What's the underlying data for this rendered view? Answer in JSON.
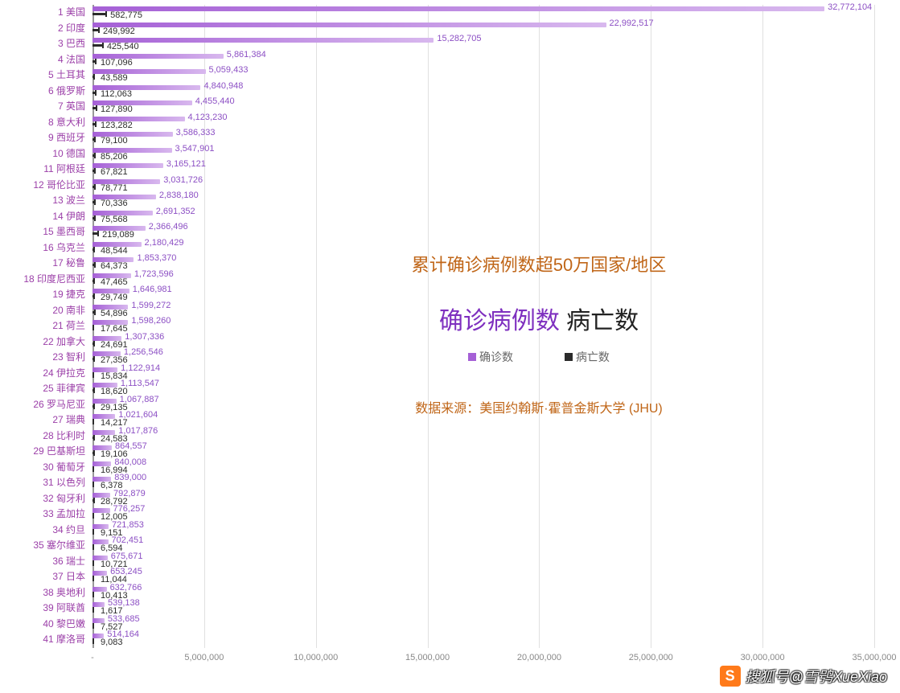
{
  "chart": {
    "type": "grouped-horizontal-bar",
    "background_color": "#ffffff",
    "grid_color": "#e0e0e0",
    "confirmed_bar_color": "#a560d6",
    "deaths_bar_color": "#2b2b2b",
    "ylabel_color": "#9b3fa8",
    "confirmed_label_color": "#8c4fc4",
    "deaths_label_color": "#2b2b2b",
    "xlim": [
      0,
      35000000
    ],
    "xtick_step": 5000000,
    "xticks": [
      "-",
      "5,000,000",
      "10,000,000",
      "15,000,000",
      "20,000,000",
      "25,000,000",
      "30,000,000",
      "35,000,000"
    ],
    "label_fontsize": 12,
    "value_fontsize": 11,
    "rows": [
      {
        "rank": 1,
        "name": "美国",
        "confirmed": 32772104,
        "deaths": 582775,
        "confirmed_label": "32,772,104",
        "deaths_label": "582,775"
      },
      {
        "rank": 2,
        "name": "印度",
        "confirmed": 22992517,
        "deaths": 249992,
        "confirmed_label": "22,992,517",
        "deaths_label": "249,992"
      },
      {
        "rank": 3,
        "name": "巴西",
        "confirmed": 15282705,
        "deaths": 425540,
        "confirmed_label": "15,282,705",
        "deaths_label": "425,540"
      },
      {
        "rank": 4,
        "name": "法国",
        "confirmed": 5861384,
        "deaths": 107096,
        "confirmed_label": "5,861,384",
        "deaths_label": "107,096"
      },
      {
        "rank": 5,
        "name": "土耳其",
        "confirmed": 5059433,
        "deaths": 43589,
        "confirmed_label": "5,059,433",
        "deaths_label": "43,589"
      },
      {
        "rank": 6,
        "name": "俄罗斯",
        "confirmed": 4840948,
        "deaths": 112063,
        "confirmed_label": "4,840,948",
        "deaths_label": "112,063"
      },
      {
        "rank": 7,
        "name": "英国",
        "confirmed": 4455440,
        "deaths": 127890,
        "confirmed_label": "4,455,440",
        "deaths_label": "127,890"
      },
      {
        "rank": 8,
        "name": "意大利",
        "confirmed": 4123230,
        "deaths": 123282,
        "confirmed_label": "4,123,230",
        "deaths_label": "123,282"
      },
      {
        "rank": 9,
        "name": "西班牙",
        "confirmed": 3586333,
        "deaths": 79100,
        "confirmed_label": "3,586,333",
        "deaths_label": "79,100"
      },
      {
        "rank": 10,
        "name": "德国",
        "confirmed": 3547901,
        "deaths": 85206,
        "confirmed_label": "3,547,901",
        "deaths_label": "85,206"
      },
      {
        "rank": 11,
        "name": "阿根廷",
        "confirmed": 3165121,
        "deaths": 67821,
        "confirmed_label": "3,165,121",
        "deaths_label": "67,821"
      },
      {
        "rank": 12,
        "name": "哥伦比亚",
        "confirmed": 3031726,
        "deaths": 78771,
        "confirmed_label": "3,031,726",
        "deaths_label": "78,771"
      },
      {
        "rank": 13,
        "name": "波兰",
        "confirmed": 2838180,
        "deaths": 70336,
        "confirmed_label": "2,838,180",
        "deaths_label": "70,336"
      },
      {
        "rank": 14,
        "name": "伊朗",
        "confirmed": 2691352,
        "deaths": 75568,
        "confirmed_label": "2,691,352",
        "deaths_label": "75,568"
      },
      {
        "rank": 15,
        "name": "墨西哥",
        "confirmed": 2366496,
        "deaths": 219089,
        "confirmed_label": "2,366,496",
        "deaths_label": "219,089"
      },
      {
        "rank": 16,
        "name": "乌克兰",
        "confirmed": 2180429,
        "deaths": 48544,
        "confirmed_label": "2,180,429",
        "deaths_label": "48,544"
      },
      {
        "rank": 17,
        "name": "秘鲁",
        "confirmed": 1853370,
        "deaths": 64373,
        "confirmed_label": "1,853,370",
        "deaths_label": "64,373"
      },
      {
        "rank": 18,
        "name": "印度尼西亚",
        "confirmed": 1723596,
        "deaths": 47465,
        "confirmed_label": "1,723,596",
        "deaths_label": "47,465"
      },
      {
        "rank": 19,
        "name": "捷克",
        "confirmed": 1646981,
        "deaths": 29749,
        "confirmed_label": "1,646,981",
        "deaths_label": "29,749"
      },
      {
        "rank": 20,
        "name": "南非",
        "confirmed": 1599272,
        "deaths": 54896,
        "confirmed_label": "1,599,272",
        "deaths_label": "54,896"
      },
      {
        "rank": 21,
        "name": "荷兰",
        "confirmed": 1598260,
        "deaths": 17645,
        "confirmed_label": "1,598,260",
        "deaths_label": "17,645"
      },
      {
        "rank": 22,
        "name": "加拿大",
        "confirmed": 1307336,
        "deaths": 24691,
        "confirmed_label": "1,307,336",
        "deaths_label": "24,691"
      },
      {
        "rank": 23,
        "name": "智利",
        "confirmed": 1256546,
        "deaths": 27356,
        "confirmed_label": "1,256,546",
        "deaths_label": "27,356"
      },
      {
        "rank": 24,
        "name": "伊拉克",
        "confirmed": 1122914,
        "deaths": 15834,
        "confirmed_label": "1,122,914",
        "deaths_label": "15,834"
      },
      {
        "rank": 25,
        "name": "菲律宾",
        "confirmed": 1113547,
        "deaths": 18620,
        "confirmed_label": "1,113,547",
        "deaths_label": "18,620"
      },
      {
        "rank": 26,
        "name": "罗马尼亚",
        "confirmed": 1067887,
        "deaths": 29135,
        "confirmed_label": "1,067,887",
        "deaths_label": "29,135"
      },
      {
        "rank": 27,
        "name": "瑞典",
        "confirmed": 1021604,
        "deaths": 14217,
        "confirmed_label": "1,021,604",
        "deaths_label": "14,217"
      },
      {
        "rank": 28,
        "name": "比利时",
        "confirmed": 1017876,
        "deaths": 24583,
        "confirmed_label": "1,017,876",
        "deaths_label": "24,583"
      },
      {
        "rank": 29,
        "name": "巴基斯坦",
        "confirmed": 864557,
        "deaths": 19106,
        "confirmed_label": "864,557",
        "deaths_label": "19,106"
      },
      {
        "rank": 30,
        "name": "葡萄牙",
        "confirmed": 840008,
        "deaths": 16994,
        "confirmed_label": "840,008",
        "deaths_label": "16,994"
      },
      {
        "rank": 31,
        "name": "以色列",
        "confirmed": 839000,
        "deaths": 6378,
        "confirmed_label": "839,000",
        "deaths_label": "6,378"
      },
      {
        "rank": 32,
        "name": "匈牙利",
        "confirmed": 792879,
        "deaths": 28792,
        "confirmed_label": "792,879",
        "deaths_label": "28,792"
      },
      {
        "rank": 33,
        "name": "孟加拉",
        "confirmed": 776257,
        "deaths": 12005,
        "confirmed_label": "776,257",
        "deaths_label": "12,005"
      },
      {
        "rank": 34,
        "name": "约旦",
        "confirmed": 721853,
        "deaths": 9151,
        "confirmed_label": "721,853",
        "deaths_label": "9,151"
      },
      {
        "rank": 35,
        "name": "塞尔维亚",
        "confirmed": 702451,
        "deaths": 6594,
        "confirmed_label": "702,451",
        "deaths_label": "6,594"
      },
      {
        "rank": 36,
        "name": "瑞士",
        "confirmed": 675671,
        "deaths": 10721,
        "confirmed_label": "675,671",
        "deaths_label": "10,721"
      },
      {
        "rank": 37,
        "name": "日本",
        "confirmed": 653245,
        "deaths": 11044,
        "confirmed_label": "653,245",
        "deaths_label": "11,044"
      },
      {
        "rank": 38,
        "name": "奥地利",
        "confirmed": 632766,
        "deaths": 10413,
        "confirmed_label": "632,766",
        "deaths_label": "10,413"
      },
      {
        "rank": 39,
        "name": "阿联酋",
        "confirmed": 539138,
        "deaths": 1617,
        "confirmed_label": "539,138",
        "deaths_label": "1,617"
      },
      {
        "rank": 40,
        "name": "黎巴嫩",
        "confirmed": 533685,
        "deaths": 7527,
        "confirmed_label": "533,685",
        "deaths_label": "7,527"
      },
      {
        "rank": 41,
        "name": "摩洛哥",
        "confirmed": 514164,
        "deaths": 9083,
        "confirmed_label": "514,164",
        "deaths_label": "9,083"
      }
    ]
  },
  "overlay": {
    "title": "累计确诊病例数超50万国家/地区",
    "confirmed_word": "确诊病例数",
    "deaths_word": "病亡数",
    "legend_confirmed": "确诊数",
    "legend_deaths": "病亡数",
    "source": "数据来源：美国约翰斯·霍普金斯大学 (JHU)",
    "title_color": "#c06618",
    "confirmed_color": "#7e2fbf",
    "deaths_color": "#222222"
  },
  "watermark": {
    "text": "搜狐号@雪鸮XueXiao"
  }
}
